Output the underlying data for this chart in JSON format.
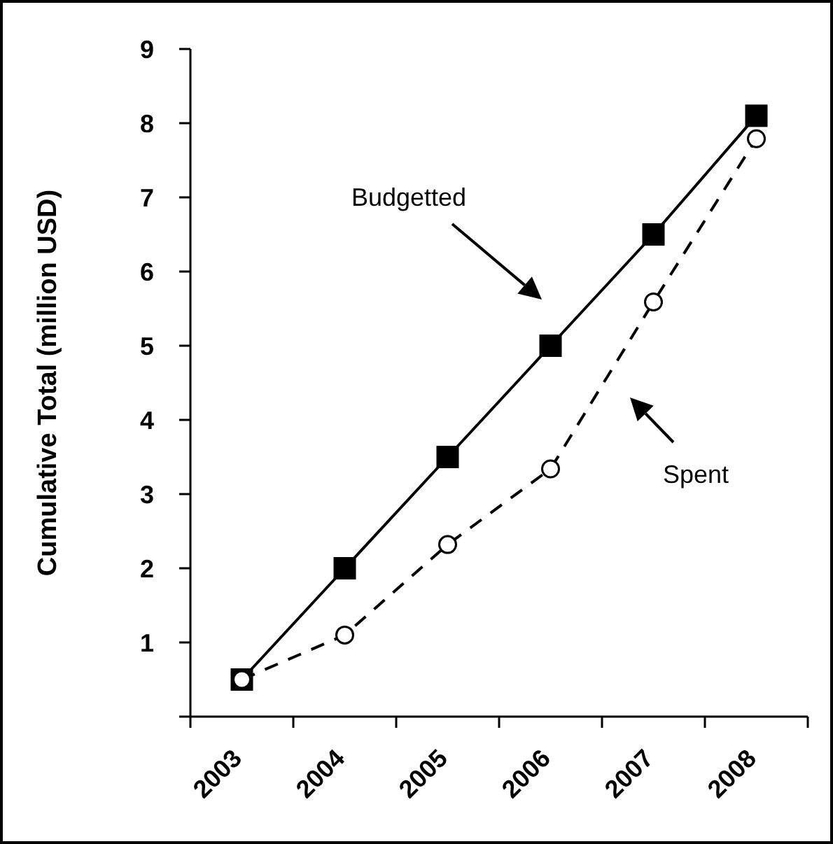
{
  "chart_data": {
    "type": "line",
    "ylabel": "Cumulative Total (million USD)",
    "categories": [
      "2003",
      "2004",
      "2005",
      "2006",
      "2007",
      "2008"
    ],
    "ylim": [
      0,
      9
    ],
    "yticks": [
      {
        "value": 0,
        "label": null
      },
      1,
      2,
      3,
      4,
      5,
      6,
      7,
      8,
      9
    ],
    "grid": false,
    "annotations": [
      "Budgetted",
      "Spent"
    ],
    "series": [
      {
        "color": "#000000",
        "marker": "square",
        "line_style": "solid",
        "values": [
          0.5,
          2,
          3.5,
          5,
          6.5,
          8.1
        ]
      },
      {
        "color": "#000000",
        "marker": "circle",
        "line_style": "dashed",
        "values": [
          0.5,
          1.1,
          2.32,
          3.34,
          5.59,
          7.79
        ]
      }
    ]
  }
}
